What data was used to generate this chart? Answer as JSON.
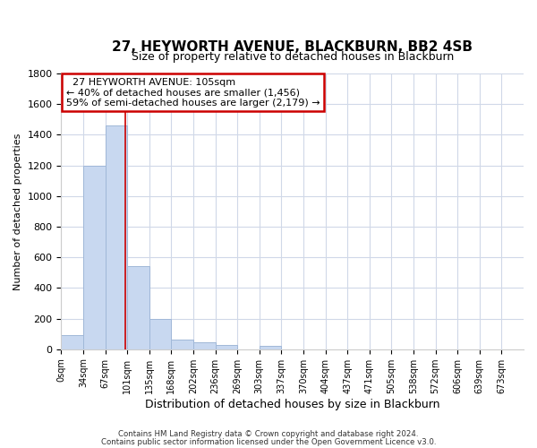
{
  "title": "27, HEYWORTH AVENUE, BLACKBURN, BB2 4SB",
  "subtitle": "Size of property relative to detached houses in Blackburn",
  "xlabel": "Distribution of detached houses by size in Blackburn",
  "ylabel": "Number of detached properties",
  "bar_labels": [
    "0sqm",
    "34sqm",
    "67sqm",
    "101sqm",
    "135sqm",
    "168sqm",
    "202sqm",
    "236sqm",
    "269sqm",
    "303sqm",
    "337sqm",
    "370sqm",
    "404sqm",
    "437sqm",
    "471sqm",
    "505sqm",
    "538sqm",
    "572sqm",
    "606sqm",
    "639sqm",
    "673sqm"
  ],
  "bar_values": [
    90,
    1200,
    1460,
    540,
    200,
    65,
    48,
    30,
    0,
    20,
    0,
    0,
    0,
    0,
    0,
    0,
    0,
    0,
    0,
    0
  ],
  "bar_color": "#c8d8f0",
  "bar_edge_color": "#a0b8d8",
  "property_size_label": "105sqm",
  "property_line_x": 2.9,
  "annotation_title": "27 HEYWORTH AVENUE: 105sqm",
  "annotation_line1": "← 40% of detached houses are smaller (1,456)",
  "annotation_line2": "59% of semi-detached houses are larger (2,179) →",
  "annotation_box_color": "#ffffff",
  "annotation_box_edge": "#cc0000",
  "ylim": [
    0,
    1800
  ],
  "yticks": [
    0,
    200,
    400,
    600,
    800,
    1000,
    1200,
    1400,
    1600,
    1800
  ],
  "footer_line1": "Contains HM Land Registry data © Crown copyright and database right 2024.",
  "footer_line2": "Contains public sector information licensed under the Open Government Licence v3.0.",
  "background_color": "#ffffff",
  "grid_color": "#d0d8e8"
}
